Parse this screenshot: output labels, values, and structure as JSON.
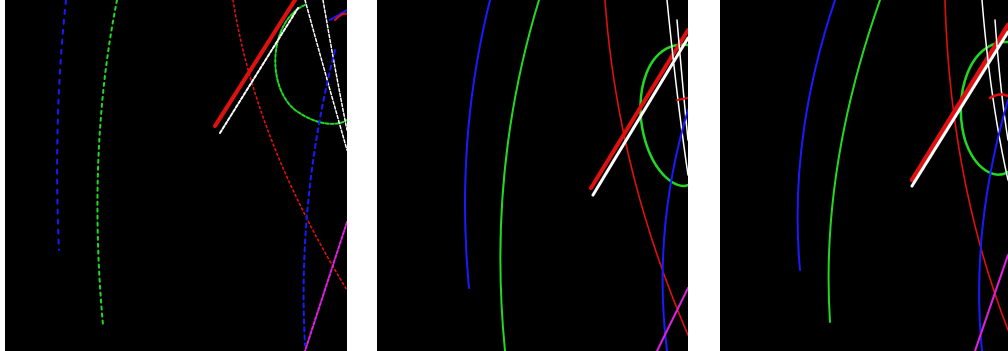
{
  "figure": {
    "panels": [
      {
        "id": "panel-1",
        "style": "dotted"
      },
      {
        "id": "panel-2",
        "style": "solid"
      },
      {
        "id": "panel-3",
        "style": "solid"
      }
    ],
    "colors": {
      "background": "#000000",
      "blue": "#1a1aff",
      "green": "#22d822",
      "red": "#e01010",
      "white": "#ffffff",
      "magenta": "#e020e0"
    }
  }
}
